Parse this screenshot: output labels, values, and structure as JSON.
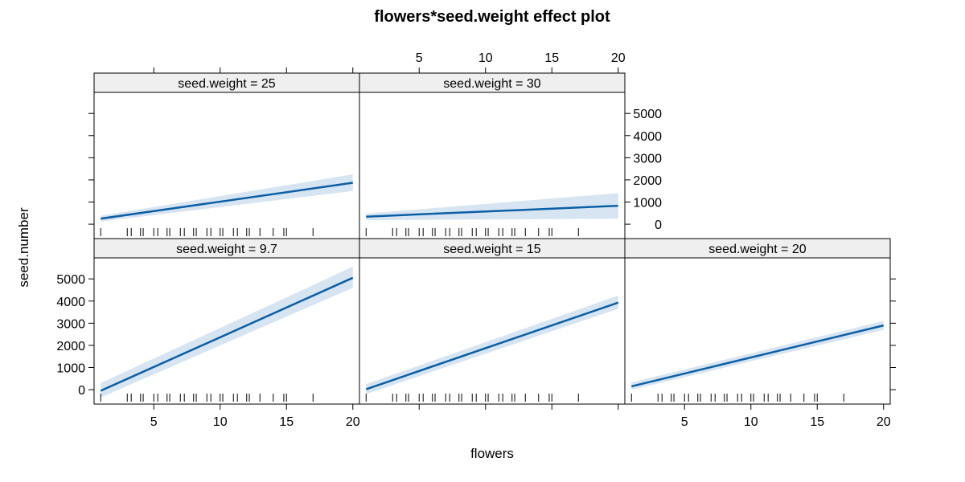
{
  "chart_data": {
    "type": "line",
    "title": "flowers*seed.weight effect plot",
    "xlabel": "flowers",
    "ylabel": "seed.number",
    "xlim": [
      0.5,
      20.5
    ],
    "ylim": [
      -650,
      5950
    ],
    "xticks": [
      5,
      10,
      15,
      20
    ],
    "yticks": [
      0,
      1000,
      2000,
      3000,
      4000,
      5000
    ],
    "colors": {
      "line": "#0b5fa5",
      "band": "#d7e4f1",
      "strip": "#efefef"
    },
    "rug_x": [
      1,
      3,
      3.3,
      4,
      4.2,
      5,
      5.3,
      6,
      6.2,
      7,
      7.3,
      8,
      8.2,
      9,
      9.3,
      10,
      10.2,
      11,
      11.3,
      12,
      12.2,
      13,
      14,
      14.8,
      15,
      17
    ],
    "panels": [
      {
        "strip": "seed.weight = 9.7",
        "line": {
          "x": [
            1,
            20
          ],
          "y": [
            -50,
            5050
          ]
        },
        "band": {
          "x": [
            1,
            20
          ],
          "lower": [
            -350,
            4600
          ],
          "upper": [
            300,
            5550
          ]
        }
      },
      {
        "strip": "seed.weight = 15",
        "line": {
          "x": [
            1,
            20
          ],
          "y": [
            20,
            3930
          ]
        },
        "band": {
          "x": [
            1,
            20
          ],
          "lower": [
            -200,
            3650
          ],
          "upper": [
            250,
            4250
          ]
        }
      },
      {
        "strip": "seed.weight = 20",
        "line": {
          "x": [
            1,
            20
          ],
          "y": [
            150,
            2900
          ]
        },
        "band": {
          "x": [
            1,
            20
          ],
          "lower": [
            0,
            2700
          ],
          "upper": [
            330,
            3100
          ]
        }
      },
      {
        "strip": "seed.weight = 25",
        "line": {
          "x": [
            1,
            20
          ],
          "y": [
            250,
            1870
          ]
        },
        "band": {
          "x": [
            1,
            20
          ],
          "lower": [
            120,
            1500
          ],
          "upper": [
            380,
            2250
          ]
        }
      },
      {
        "strip": "seed.weight = 30",
        "line": {
          "x": [
            1,
            20
          ],
          "y": [
            340,
            830
          ]
        },
        "band": {
          "x": [
            1,
            20
          ],
          "lower": [
            180,
            250
          ],
          "upper": [
            480,
            1400
          ]
        }
      }
    ]
  }
}
